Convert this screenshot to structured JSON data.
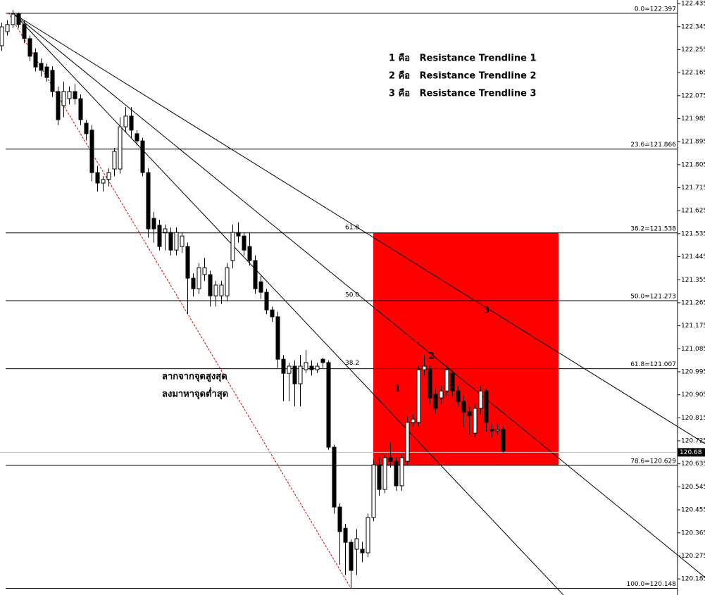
{
  "chart_data": {
    "type": "candlestick",
    "ylim": [
      120.122,
      122.449
    ],
    "yticks": [
      122.435,
      122.345,
      122.255,
      122.165,
      122.075,
      121.985,
      121.895,
      121.805,
      121.715,
      121.625,
      121.535,
      121.445,
      121.355,
      121.265,
      121.175,
      121.085,
      120.995,
      120.905,
      120.815,
      120.725,
      120.635,
      120.545,
      120.455,
      120.365,
      120.275,
      120.185
    ],
    "up_color": "#ffffff",
    "down_color": "#000000",
    "open": [
      122.27,
      122.325,
      122.353,
      122.394,
      122.353,
      122.298,
      122.243,
      122.201,
      122.187,
      122.174,
      122.091,
      122.036,
      122.063,
      122.091,
      122.063,
      121.967,
      121.94,
      121.774,
      121.733,
      121.747,
      121.788,
      121.788,
      121.953,
      121.995,
      121.926,
      121.898,
      121.774,
      121.595,
      121.568,
      121.54,
      121.54,
      121.471,
      121.485,
      121.485,
      121.361,
      121.32,
      121.375,
      121.375,
      121.292,
      121.292,
      121.292,
      121.43,
      121.54,
      121.526,
      121.485,
      121.43,
      121.347,
      121.306,
      121.237,
      121.21,
      121.044,
      120.989,
      121.017,
      120.948,
      121.003,
      121.017,
      121.003,
      121.044,
      121.031,
      120.7,
      120.466,
      120.383,
      120.328,
      120.301,
      120.301,
      120.287,
      120.425,
      120.631,
      120.535,
      120.659,
      120.645,
      120.549,
      120.645,
      120.797,
      120.797,
      121.003,
      121.003,
      120.907,
      120.893,
      120.92,
      120.989,
      120.92,
      120.879,
      120.838,
      120.755,
      120.852,
      120.92,
      120.769,
      120.764,
      120.769
    ],
    "high": [
      122.36,
      122.37,
      122.41,
      122.4,
      122.37,
      122.31,
      122.26,
      122.22,
      122.2,
      122.19,
      122.11,
      122.13,
      122.11,
      122.12,
      122.08,
      121.98,
      121.96,
      121.8,
      121.76,
      121.79,
      121.87,
      121.99,
      122.03,
      122.03,
      121.94,
      121.91,
      121.79,
      121.62,
      121.59,
      121.57,
      121.56,
      121.56,
      121.54,
      121.5,
      121.38,
      121.42,
      121.44,
      121.39,
      121.35,
      121.35,
      121.42,
      121.57,
      121.58,
      121.54,
      121.54,
      121.45,
      121.37,
      121.32,
      121.25,
      121.23,
      121.06,
      121.03,
      121.04,
      121.06,
      121.08,
      121.04,
      121.03,
      121.05,
      121.04,
      120.71,
      120.48,
      120.4,
      120.34,
      120.38,
      120.33,
      120.44,
      120.65,
      120.66,
      120.67,
      120.72,
      120.66,
      120.67,
      120.82,
      120.83,
      121.02,
      121.06,
      121.02,
      120.93,
      120.94,
      121.02,
      121.0,
      120.94,
      120.9,
      120.86,
      120.87,
      120.94,
      120.93,
      120.79,
      120.79,
      120.78
    ],
    "low": [
      122.25,
      122.31,
      122.34,
      122.34,
      122.28,
      122.21,
      122.17,
      122.15,
      122.13,
      122.07,
      121.96,
      121.99,
      122.04,
      122.04,
      121.96,
      121.9,
      121.74,
      121.7,
      121.7,
      121.72,
      121.76,
      121.77,
      121.93,
      121.91,
      121.88,
      121.76,
      121.52,
      121.5,
      121.47,
      121.47,
      121.45,
      121.45,
      121.46,
      121.22,
      121.29,
      121.3,
      121.35,
      121.25,
      121.25,
      121.26,
      121.27,
      121.4,
      121.5,
      121.45,
      121.41,
      121.3,
      121.28,
      121.22,
      121.19,
      121.01,
      120.88,
      120.88,
      120.86,
      120.86,
      120.99,
      120.98,
      120.99,
      121.01,
      120.69,
      120.44,
      120.24,
      120.2,
      120.148,
      120.2,
      120.25,
      120.27,
      120.41,
      120.51,
      120.52,
      120.62,
      120.53,
      120.53,
      120.63,
      120.78,
      120.78,
      120.98,
      120.87,
      120.83,
      120.87,
      120.9,
      120.9,
      120.86,
      120.78,
      120.75,
      120.74,
      120.83,
      120.76,
      120.74,
      120.75,
      120.68
    ],
    "close": [
      122.344,
      122.353,
      122.394,
      122.353,
      122.298,
      122.229,
      122.187,
      122.174,
      122.146,
      122.091,
      121.981,
      122.091,
      122.091,
      122.063,
      121.981,
      121.926,
      121.774,
      121.733,
      121.747,
      121.774,
      121.857,
      121.953,
      121.995,
      121.94,
      121.898,
      121.774,
      121.554,
      121.554,
      121.485,
      121.554,
      121.471,
      121.54,
      121.526,
      121.361,
      121.32,
      121.402,
      121.402,
      121.292,
      121.334,
      121.334,
      121.402,
      121.54,
      121.526,
      121.471,
      121.43,
      121.32,
      121.306,
      121.237,
      121.21,
      121.044,
      120.989,
      121.017,
      120.948,
      121.017,
      121.031,
      121.003,
      121.017,
      121.031,
      120.7,
      120.466,
      120.37,
      120.328,
      120.218,
      120.342,
      120.287,
      120.425,
      120.631,
      120.535,
      120.659,
      120.645,
      120.549,
      120.659,
      120.797,
      120.81,
      121.003,
      121.017,
      120.893,
      120.852,
      120.92,
      121.003,
      120.92,
      120.879,
      120.838,
      120.824,
      120.852,
      120.92,
      120.797,
      120.764,
      120.769,
      120.686
    ],
    "fib_levels": [
      {
        "value": 122.397,
        "label": "0.0=122.397"
      },
      {
        "value": 121.866,
        "label": "23.6=121.866"
      },
      {
        "value": 121.538,
        "label": "38.2=121.538"
      },
      {
        "value": 121.273,
        "label": "50.0=121.273"
      },
      {
        "value": 121.007,
        "label": "61.8=121.007"
      },
      {
        "value": 120.629,
        "label": "78.6=120.629"
      },
      {
        "value": 120.148,
        "label": "100.0=120.148"
      }
    ],
    "fib_mid_labels": [
      {
        "text": "61.8",
        "price": 121.538
      },
      {
        "text": "50.0",
        "price": 121.273
      },
      {
        "text": "38.2",
        "price": 121.007
      }
    ],
    "current_price": 120.68,
    "legend_notes": [
      "1 คือ   Resistance Trendline 1",
      "2 คือ   Resistance Trendline 2",
      "3 คือ   Resistance Trendline 3"
    ],
    "drag_note": [
      "ลากจากจุดสูงสุด",
      "ลงมาหาจุดต่ำสุด"
    ],
    "trendline_numbers": [
      "1",
      "2",
      "3"
    ]
  }
}
